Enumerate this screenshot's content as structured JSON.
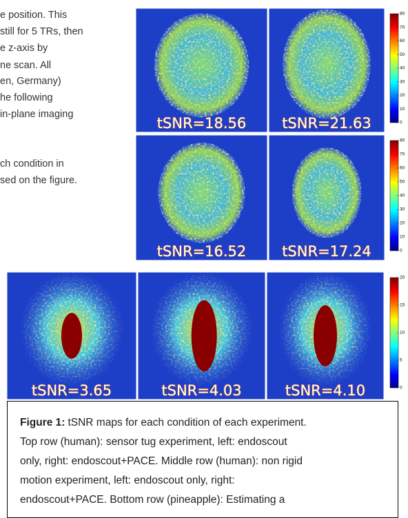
{
  "body_text": {
    "lines": [
      "e position.  This",
      "still for 5 TRs, then",
      "e z-axis by",
      "ne scan.  All",
      "en, Germany)",
      "he following",
      "in-plane imaging",
      "ch condition in",
      "sed on the figure."
    ]
  },
  "figure": {
    "panels": [
      {
        "label": "tSNR=18.56"
      },
      {
        "label": "tSNR=21.63"
      },
      {
        "label": "tSNR=16.52"
      },
      {
        "label": "tSNR=17.24"
      },
      {
        "label": "tSNR=3.65"
      },
      {
        "label": "tSNR=4.03"
      },
      {
        "label": "tSNR=4.10"
      }
    ],
    "colorbars": [
      {
        "ticks": [
          80,
          70,
          60,
          50,
          40,
          30,
          20,
          10,
          0
        ]
      },
      {
        "ticks": [
          80,
          70,
          60,
          50,
          40,
          30,
          20,
          10,
          0
        ]
      },
      {
        "ticks": [
          20,
          15,
          10,
          5,
          0
        ]
      }
    ]
  },
  "caption": {
    "label": "Figure 1:",
    "lines": [
      "tSNR maps for each condition of each experiment.",
      "Top row (human): sensor tug experiment, left: endoscout",
      "only, right: endoscout+PACE.  Middle row (human): non rigid",
      "motion experiment, left: endoscout only, right:",
      "endoscout+PACE.  Bottom row (pineapple): Estimating a"
    ]
  }
}
